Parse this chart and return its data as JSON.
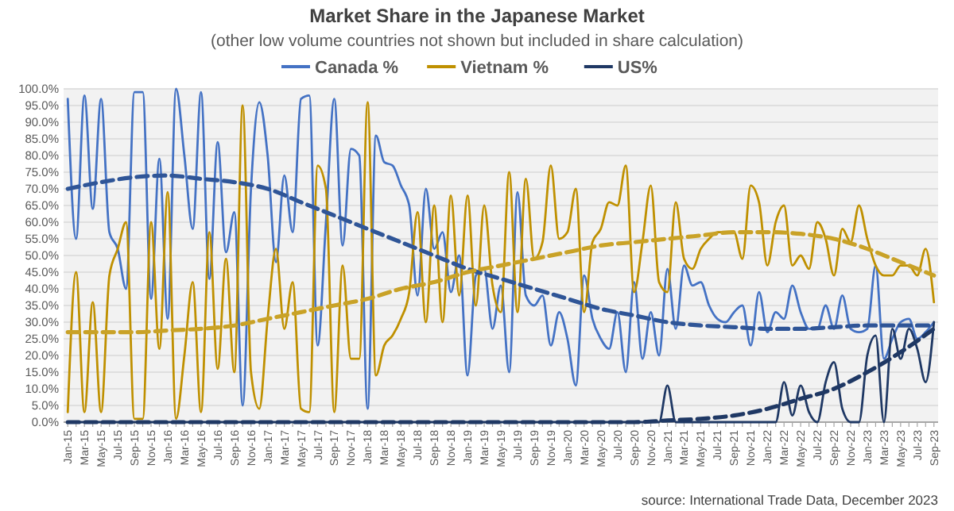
{
  "chart_data": {
    "type": "line",
    "title": "Market Share in the Japanese Market",
    "subtitle": "(other low volume countries not shown but included in share calculation)",
    "categories": [
      "Jan-15",
      null,
      "Mar-15",
      null,
      "May-15",
      null,
      "Jul-15",
      null,
      "Sep-15",
      null,
      "Nov-15",
      null,
      "Jan-16",
      null,
      "Mar-16",
      null,
      "May-16",
      null,
      "Jul-16",
      null,
      "Sep-16",
      null,
      "Nov-16",
      null,
      "Jan-17",
      null,
      "Mar-17",
      null,
      "May-17",
      null,
      "Jul-17",
      null,
      "Sep-17",
      null,
      "Nov-17",
      null,
      "Jan-18",
      null,
      "Mar-18",
      null,
      "May-18",
      null,
      "Jul-18",
      null,
      "Sep-18",
      null,
      "Nov-18",
      null,
      "Jan-19",
      null,
      "Mar-19",
      null,
      "May-19",
      null,
      "Jul-19",
      null,
      "Sep-19",
      null,
      "Nov-19",
      null,
      "Jan-20",
      null,
      "Mar-20",
      null,
      "May-20",
      null,
      "Jul-20",
      null,
      "Sep-20",
      null,
      "Nov-20",
      null,
      "Jan-21",
      null,
      "Mar-21",
      null,
      "May-21",
      null,
      "Jul-21",
      null,
      "Sep-21",
      null,
      "Nov-21",
      null,
      "Jan-22",
      null,
      "Mar-22",
      null,
      "May-22",
      null,
      "Jul-22",
      null,
      "Sep-22",
      null,
      "Nov-22",
      null,
      "Jan-23",
      null,
      "Mar-23",
      null,
      "May-23",
      null,
      "Jul-23",
      null,
      "Sep-23"
    ],
    "series": [
      {
        "name": "Canada %",
        "color": "#4472c4",
        "values": [
          97,
          55,
          98,
          64,
          97,
          57,
          52,
          40,
          99,
          99,
          37,
          79,
          31,
          100,
          80,
          58,
          99,
          43,
          84,
          51,
          63,
          5,
          70,
          96,
          80,
          48,
          74,
          57,
          97,
          98,
          23,
          60,
          97,
          53,
          82,
          80,
          4,
          86,
          78,
          77,
          71,
          65,
          38,
          70,
          52,
          57,
          39,
          50,
          14,
          44,
          46,
          28,
          41,
          15,
          69,
          38,
          35,
          38,
          23,
          33,
          25,
          11,
          44,
          31,
          25,
          22,
          33,
          15,
          42,
          19,
          33,
          20,
          46,
          28,
          47,
          41,
          42,
          35,
          31,
          30,
          33,
          35,
          23,
          39,
          27,
          33,
          31,
          41,
          33,
          28,
          28,
          35,
          28,
          38,
          28,
          27,
          28,
          47,
          19,
          25,
          30,
          31,
          25,
          27,
          30
        ]
      },
      {
        "name": "Vietnam %",
        "color": "#bf9000",
        "values": [
          3,
          45,
          3,
          36,
          3,
          44,
          52,
          60,
          1,
          1,
          60,
          22,
          69,
          1,
          20,
          42,
          3,
          57,
          16,
          49,
          15,
          95,
          15,
          4,
          31,
          52,
          28,
          42,
          4,
          3,
          77,
          70,
          3,
          47,
          19,
          19,
          96,
          14,
          23,
          26,
          31,
          39,
          63,
          30,
          65,
          30,
          68,
          38,
          68,
          35,
          65,
          41,
          33,
          75,
          33,
          73,
          49,
          54,
          77,
          55,
          57,
          70,
          33,
          54,
          58,
          66,
          65,
          77,
          39,
          54,
          71,
          42,
          39,
          66,
          49,
          46,
          52,
          55,
          57,
          57,
          57,
          49,
          71,
          66,
          47,
          60,
          65,
          47,
          50,
          46,
          60,
          55,
          44,
          58,
          54,
          65,
          55,
          47,
          44,
          44,
          47,
          47,
          44,
          52,
          36
        ]
      },
      {
        "name": "US%",
        "color": "#1f3864",
        "values": [
          0,
          0,
          0,
          0,
          0,
          0,
          0,
          0,
          0,
          0,
          0,
          0,
          0,
          0,
          0,
          0,
          0,
          0,
          0,
          0,
          0,
          0,
          0,
          0,
          0,
          0,
          0,
          0,
          0,
          0,
          0,
          0,
          0,
          0,
          0,
          0,
          0,
          0,
          0,
          0,
          0,
          0,
          0,
          0,
          0,
          0,
          0,
          0,
          0,
          0,
          0,
          0,
          0,
          0,
          0,
          0,
          0,
          0,
          0,
          0,
          0,
          0,
          0,
          0,
          0,
          0,
          0,
          0,
          0,
          0,
          0,
          0,
          11,
          0,
          0,
          0,
          0,
          0,
          0,
          0,
          0,
          0,
          0,
          0,
          0,
          0,
          12,
          2,
          11,
          3,
          0,
          12,
          18,
          4,
          0,
          0,
          20,
          26,
          0,
          28,
          19,
          28,
          22,
          12,
          30
        ]
      },
      {
        "type": "line",
        "line_style": "dashed",
        "color": "#2f5597",
        "x": [
          "Jan-15",
          "May-15",
          "Sep-15",
          "Jan-16",
          "May-16",
          "Sep-16",
          "Jan-17",
          "May-17",
          "Sep-17",
          "Jan-18",
          "May-18",
          "Sep-18",
          "Jan-19",
          "May-19",
          "Sep-19",
          "Jan-20",
          "May-20",
          "Sep-20",
          "Jan-21",
          "May-21",
          "Sep-21",
          "Jan-22",
          "May-22",
          "Sep-22",
          "Jan-23",
          "May-23",
          "Sep-23"
        ],
        "values": [
          70,
          72,
          73.5,
          74,
          73,
          72,
          70,
          66,
          62,
          58,
          54,
          50,
          46,
          43,
          40,
          37,
          34,
          32,
          30,
          29,
          28.5,
          28,
          28,
          28.5,
          29,
          29,
          29
        ]
      },
      {
        "type": "line",
        "line_style": "dashed",
        "color": "#c9a227",
        "x": [
          "Jan-15",
          "May-15",
          "Sep-15",
          "Jan-16",
          "May-16",
          "Sep-16",
          "Jan-17",
          "May-17",
          "Sep-17",
          "Jan-18",
          "May-18",
          "Sep-18",
          "Jan-19",
          "May-19",
          "Sep-19",
          "Jan-20",
          "May-20",
          "Sep-20",
          "Jan-21",
          "May-21",
          "Sep-21",
          "Jan-22",
          "May-22",
          "Sep-22",
          "Jan-23",
          "May-23",
          "Sep-23"
        ],
        "values": [
          27,
          27,
          27,
          27.5,
          28,
          29,
          31,
          33,
          35,
          37,
          40,
          42,
          45,
          47,
          49,
          51,
          53,
          54,
          55,
          56,
          57,
          57,
          56.5,
          55,
          52,
          48,
          44
        ]
      },
      {
        "type": "line",
        "line_style": "dashed",
        "color": "#1f3864",
        "x": [
          "Jan-15",
          "May-15",
          "Sep-15",
          "Jan-16",
          "May-16",
          "Sep-16",
          "Jan-17",
          "May-17",
          "Sep-17",
          "Jan-18",
          "May-18",
          "Sep-18",
          "Jan-19",
          "May-19",
          "Sep-19",
          "Jan-20",
          "May-20",
          "Sep-20",
          "Jan-21",
          "May-21",
          "Sep-21",
          "Jan-22",
          "May-22",
          "Sep-22",
          "Jan-23",
          "May-23",
          "Sep-23"
        ],
        "values": [
          0,
          0,
          0,
          0,
          0,
          0,
          0,
          0,
          0,
          0,
          0,
          0,
          0,
          0,
          0,
          0,
          0,
          0,
          0.5,
          1,
          2,
          4,
          7,
          10,
          15,
          21,
          28
        ]
      }
    ],
    "ylim": [
      0,
      100
    ],
    "yticks": [
      {
        "value": 0,
        "label": "0.0%"
      },
      {
        "value": 5,
        "label": "5.0%"
      },
      {
        "value": 10,
        "label": "10.0%"
      },
      {
        "value": 15,
        "label": "15.0%"
      },
      {
        "value": 20,
        "label": "20.0%"
      },
      {
        "value": 25,
        "label": "25.0%"
      },
      {
        "value": 30,
        "label": "30.0%"
      },
      {
        "value": 35,
        "label": "35.0%"
      },
      {
        "value": 40,
        "label": "40.0%"
      },
      {
        "value": 45,
        "label": "45.0%"
      },
      {
        "value": 50,
        "label": "50.0%"
      },
      {
        "value": 55,
        "label": "55.0%"
      },
      {
        "value": 60,
        "label": "60.0%"
      },
      {
        "value": 65,
        "label": "65.0%"
      },
      {
        "value": 70,
        "label": "70.0%"
      },
      {
        "value": 75,
        "label": "75.0%"
      },
      {
        "value": 80,
        "label": "80.0%"
      },
      {
        "value": 85,
        "label": "85.0%"
      },
      {
        "value": 90,
        "label": "90.0%"
      },
      {
        "value": 95,
        "label": "95.0%"
      },
      {
        "value": 100,
        "label": "100.0%"
      }
    ],
    "grid": "y",
    "legend": "top",
    "annotations": [
      "source: International Trade Data, December 2023"
    ]
  }
}
